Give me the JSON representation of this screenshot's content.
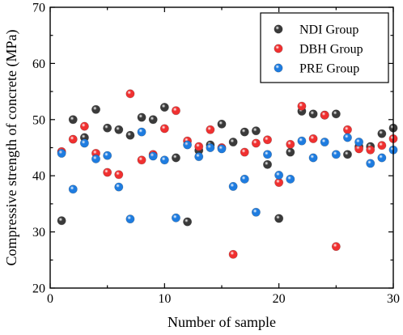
{
  "chart_data": {
    "type": "scatter",
    "xlabel": "Number of sample",
    "ylabel": "Compressive strength of concrete (MPa)",
    "xlim": [
      0,
      30
    ],
    "ylim": [
      20,
      70
    ],
    "xticks": [
      0,
      10,
      20,
      30
    ],
    "yticks": [
      20,
      30,
      40,
      50,
      60,
      70
    ],
    "grid": false,
    "legend_position": "top-right",
    "x": [
      1,
      2,
      3,
      4,
      5,
      6,
      7,
      8,
      9,
      10,
      11,
      12,
      13,
      14,
      15,
      16,
      17,
      18,
      19,
      20,
      21,
      22,
      23,
      24,
      25,
      26,
      27,
      28,
      29,
      30
    ],
    "series": [
      {
        "name": "NDI Group",
        "color": "#3a3a3a",
        "values": [
          32.0,
          50.0,
          46.8,
          51.8,
          48.5,
          48.2,
          47.2,
          50.4,
          50.0,
          52.2,
          43.2,
          31.8,
          44.5,
          45.5,
          49.2,
          46.0,
          47.8,
          48.0,
          42.0,
          32.4,
          44.2,
          51.5,
          51.0,
          50.8,
          51.0,
          43.8,
          45.2,
          45.2,
          47.5,
          48.5
        ]
      },
      {
        "name": "DBH Group",
        "color": "#f03030",
        "values": [
          44.3,
          46.5,
          48.8,
          44.0,
          40.6,
          40.2,
          54.6,
          42.8,
          43.8,
          48.4,
          51.6,
          46.2,
          45.2,
          48.2,
          45.0,
          26.0,
          44.2,
          45.8,
          46.4,
          38.8,
          45.6,
          52.4,
          46.6,
          50.8,
          27.4,
          48.2,
          44.8,
          44.6,
          45.4,
          46.6
        ]
      },
      {
        "name": "PRE Group",
        "color": "#1e7ce0",
        "values": [
          44.0,
          37.6,
          45.8,
          43.0,
          43.6,
          38.0,
          32.3,
          47.8,
          43.5,
          42.8,
          32.5,
          45.5,
          43.4,
          45.0,
          44.8,
          38.1,
          39.4,
          33.5,
          43.8,
          40.1,
          39.4,
          46.2,
          43.2,
          46.0,
          43.8,
          46.8,
          46.0,
          42.2,
          43.2,
          44.6
        ]
      }
    ]
  }
}
